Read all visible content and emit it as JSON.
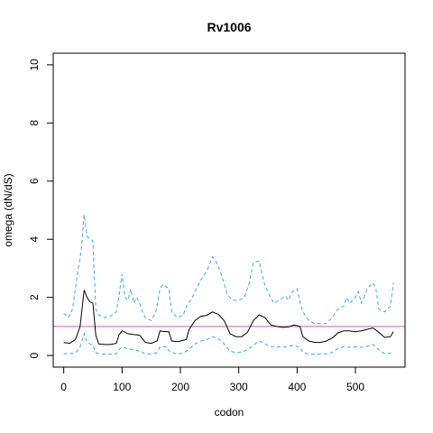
{
  "chart_data": {
    "type": "line",
    "title": "Rv1006",
    "xlabel": "codon",
    "ylabel": "omega (dN/dS)",
    "xlim": [
      -18,
      585
    ],
    "ylim": [
      -0.4,
      10.4
    ],
    "x_ticks": [
      0,
      100,
      200,
      300,
      400,
      500
    ],
    "y_ticks": [
      0,
      2,
      4,
      6,
      8,
      10
    ],
    "reference_line": {
      "y": 1,
      "color": "#c9659d"
    },
    "series": [
      {
        "style": "solid",
        "color": "#000000",
        "points": [
          [
            0,
            0.45
          ],
          [
            10,
            0.42
          ],
          [
            20,
            0.55
          ],
          [
            28,
            1.0
          ],
          [
            35,
            2.25
          ],
          [
            40,
            2.0
          ],
          [
            45,
            1.85
          ],
          [
            50,
            1.8
          ],
          [
            55,
            0.7
          ],
          [
            60,
            0.4
          ],
          [
            70,
            0.38
          ],
          [
            80,
            0.38
          ],
          [
            90,
            0.42
          ],
          [
            95,
            0.72
          ],
          [
            100,
            0.85
          ],
          [
            110,
            0.75
          ],
          [
            120,
            0.72
          ],
          [
            130,
            0.7
          ],
          [
            140,
            0.45
          ],
          [
            150,
            0.42
          ],
          [
            160,
            0.5
          ],
          [
            165,
            0.85
          ],
          [
            170,
            0.83
          ],
          [
            180,
            0.82
          ],
          [
            185,
            0.5
          ],
          [
            195,
            0.48
          ],
          [
            200,
            0.5
          ],
          [
            210,
            0.55
          ],
          [
            215,
            0.9
          ],
          [
            225,
            1.2
          ],
          [
            235,
            1.35
          ],
          [
            245,
            1.38
          ],
          [
            255,
            1.5
          ],
          [
            265,
            1.42
          ],
          [
            275,
            1.2
          ],
          [
            285,
            0.75
          ],
          [
            295,
            0.65
          ],
          [
            305,
            0.65
          ],
          [
            315,
            0.8
          ],
          [
            325,
            1.2
          ],
          [
            335,
            1.4
          ],
          [
            345,
            1.3
          ],
          [
            355,
            1.05
          ],
          [
            365,
            1.0
          ],
          [
            375,
            0.97
          ],
          [
            385,
            0.98
          ],
          [
            395,
            1.05
          ],
          [
            405,
            1.0
          ],
          [
            410,
            0.65
          ],
          [
            420,
            0.5
          ],
          [
            430,
            0.45
          ],
          [
            440,
            0.45
          ],
          [
            450,
            0.5
          ],
          [
            460,
            0.6
          ],
          [
            470,
            0.78
          ],
          [
            480,
            0.85
          ],
          [
            490,
            0.85
          ],
          [
            500,
            0.82
          ],
          [
            510,
            0.85
          ],
          [
            520,
            0.9
          ],
          [
            530,
            0.95
          ],
          [
            540,
            0.8
          ],
          [
            550,
            0.62
          ],
          [
            560,
            0.65
          ],
          [
            565,
            0.82
          ]
        ]
      },
      {
        "style": "dashed",
        "color": "#3fa9e0",
        "points": [
          [
            0,
            1.45
          ],
          [
            8,
            1.3
          ],
          [
            15,
            1.6
          ],
          [
            20,
            2.3
          ],
          [
            25,
            3.0
          ],
          [
            30,
            3.6
          ],
          [
            35,
            4.85
          ],
          [
            40,
            4.1
          ],
          [
            45,
            4.0
          ],
          [
            50,
            3.95
          ],
          [
            55,
            1.6
          ],
          [
            60,
            1.4
          ],
          [
            70,
            1.3
          ],
          [
            80,
            1.35
          ],
          [
            90,
            1.5
          ],
          [
            95,
            2.1
          ],
          [
            100,
            2.8
          ],
          [
            105,
            2.0
          ],
          [
            110,
            1.9
          ],
          [
            115,
            2.3
          ],
          [
            120,
            1.8
          ],
          [
            125,
            2.0
          ],
          [
            130,
            1.8
          ],
          [
            135,
            1.5
          ],
          [
            140,
            1.3
          ],
          [
            150,
            1.2
          ],
          [
            158,
            1.5
          ],
          [
            165,
            2.3
          ],
          [
            170,
            2.45
          ],
          [
            180,
            2.3
          ],
          [
            185,
            1.5
          ],
          [
            195,
            1.3
          ],
          [
            205,
            1.4
          ],
          [
            212,
            1.8
          ],
          [
            218,
            1.9
          ],
          [
            225,
            2.2
          ],
          [
            235,
            2.6
          ],
          [
            245,
            2.9
          ],
          [
            255,
            3.4
          ],
          [
            262,
            3.2
          ],
          [
            270,
            2.8
          ],
          [
            280,
            2.1
          ],
          [
            290,
            1.9
          ],
          [
            300,
            1.9
          ],
          [
            310,
            2.0
          ],
          [
            318,
            2.5
          ],
          [
            325,
            3.2
          ],
          [
            335,
            3.25
          ],
          [
            340,
            2.8
          ],
          [
            345,
            2.4
          ],
          [
            352,
            2.1
          ],
          [
            360,
            1.8
          ],
          [
            370,
            1.9
          ],
          [
            380,
            2.05
          ],
          [
            385,
            1.9
          ],
          [
            392,
            2.2
          ],
          [
            400,
            2.3
          ],
          [
            405,
            1.85
          ],
          [
            410,
            1.5
          ],
          [
            420,
            1.2
          ],
          [
            430,
            1.1
          ],
          [
            440,
            1.1
          ],
          [
            450,
            1.1
          ],
          [
            460,
            1.3
          ],
          [
            470,
            1.6
          ],
          [
            480,
            1.7
          ],
          [
            485,
            2.0
          ],
          [
            490,
            1.8
          ],
          [
            500,
            2.0
          ],
          [
            505,
            2.2
          ],
          [
            510,
            1.8
          ],
          [
            515,
            2.0
          ],
          [
            520,
            2.3
          ],
          [
            530,
            2.5
          ],
          [
            535,
            2.3
          ],
          [
            540,
            1.6
          ],
          [
            550,
            1.5
          ],
          [
            560,
            1.7
          ],
          [
            565,
            2.5
          ]
        ]
      },
      {
        "style": "dashed",
        "color": "#3fa9e0",
        "points": [
          [
            0,
            0.06
          ],
          [
            20,
            0.08
          ],
          [
            28,
            0.3
          ],
          [
            35,
            0.75
          ],
          [
            40,
            0.45
          ],
          [
            45,
            0.4
          ],
          [
            50,
            0.35
          ],
          [
            55,
            0.1
          ],
          [
            65,
            0.05
          ],
          [
            80,
            0.05
          ],
          [
            90,
            0.06
          ],
          [
            97,
            0.25
          ],
          [
            100,
            0.3
          ],
          [
            110,
            0.22
          ],
          [
            120,
            0.2
          ],
          [
            130,
            0.15
          ],
          [
            140,
            0.05
          ],
          [
            150,
            0.05
          ],
          [
            160,
            0.1
          ],
          [
            165,
            0.3
          ],
          [
            175,
            0.3
          ],
          [
            182,
            0.12
          ],
          [
            195,
            0.05
          ],
          [
            205,
            0.08
          ],
          [
            215,
            0.22
          ],
          [
            225,
            0.4
          ],
          [
            235,
            0.5
          ],
          [
            245,
            0.55
          ],
          [
            255,
            0.65
          ],
          [
            265,
            0.58
          ],
          [
            275,
            0.4
          ],
          [
            285,
            0.15
          ],
          [
            295,
            0.1
          ],
          [
            305,
            0.12
          ],
          [
            315,
            0.2
          ],
          [
            325,
            0.35
          ],
          [
            335,
            0.5
          ],
          [
            345,
            0.4
          ],
          [
            355,
            0.3
          ],
          [
            365,
            0.3
          ],
          [
            375,
            0.28
          ],
          [
            385,
            0.32
          ],
          [
            395,
            0.35
          ],
          [
            405,
            0.28
          ],
          [
            410,
            0.1
          ],
          [
            420,
            0.05
          ],
          [
            440,
            0.05
          ],
          [
            450,
            0.06
          ],
          [
            460,
            0.1
          ],
          [
            470,
            0.25
          ],
          [
            480,
            0.3
          ],
          [
            490,
            0.28
          ],
          [
            500,
            0.3
          ],
          [
            510,
            0.28
          ],
          [
            520,
            0.32
          ],
          [
            530,
            0.38
          ],
          [
            540,
            0.2
          ],
          [
            550,
            0.06
          ],
          [
            560,
            0.08
          ],
          [
            565,
            0.12
          ]
        ]
      }
    ]
  }
}
